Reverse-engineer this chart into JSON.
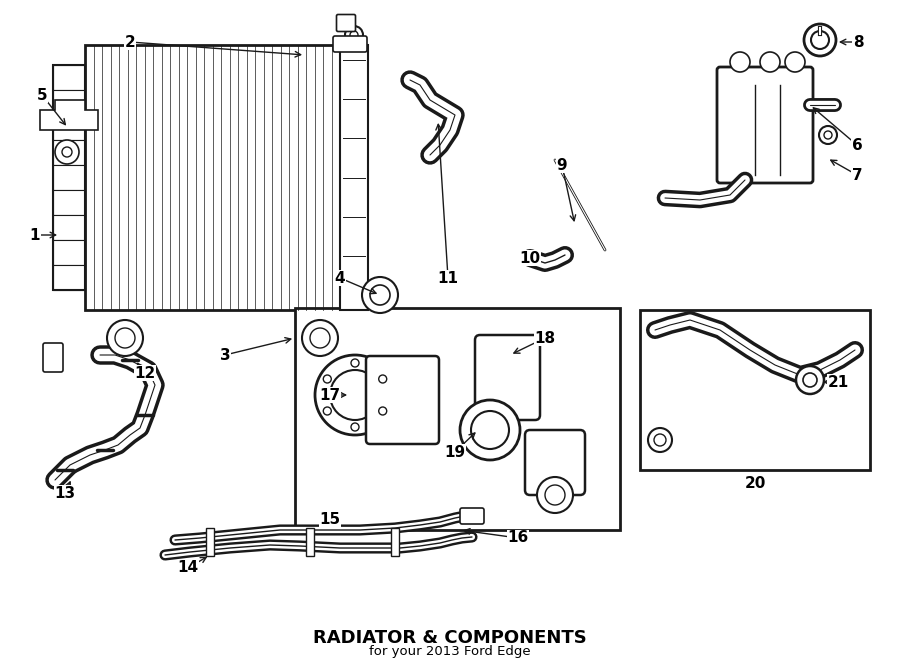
{
  "title": "RADIATOR & COMPONENTS",
  "subtitle": "for your 2013 Ford Edge",
  "bg_color": "#ffffff",
  "line_color": "#1a1a1a",
  "text_color": "#000000",
  "fig_width": 9.0,
  "fig_height": 6.62,
  "dpi": 100
}
